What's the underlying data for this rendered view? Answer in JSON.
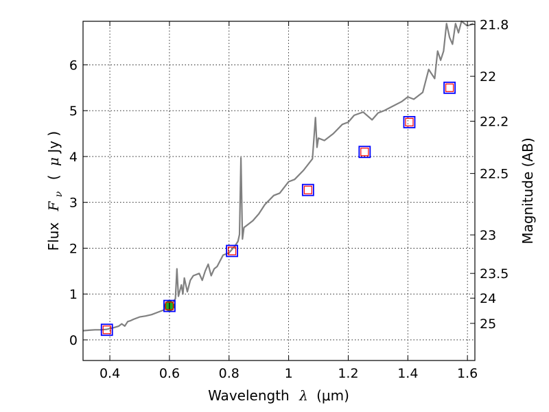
{
  "chart_data": {
    "type": "line",
    "title": "",
    "xlabel_text": "Wavelength",
    "xlabel_symbol": "λ",
    "xlabel_unit": "(μm)",
    "ylabel_text": "Flux",
    "ylabel_symbol": "F",
    "ylabel_sub": "ν",
    "ylabel_unit_open": "(",
    "ylabel_unit_mu": "μ",
    "ylabel_unit_rest": "Jy )",
    "ylabel_right": "Magnitude (AB)",
    "xlim": [
      0.31,
      1.625
    ],
    "ylim": [
      -0.45,
      6.95
    ],
    "grid": true,
    "x_ticks": [
      0.4,
      0.6,
      0.8,
      1.0,
      1.2,
      1.4,
      1.6
    ],
    "x_tick_labels": [
      "0.4",
      "0.6",
      "0.8",
      "1",
      "1.2",
      "1.4",
      "1.6"
    ],
    "y_ticks": [
      0,
      1,
      2,
      3,
      4,
      5,
      6
    ],
    "y_tick_labels": [
      "0",
      "1",
      "2",
      "3",
      "4",
      "5",
      "6"
    ],
    "right_ticks": [
      {
        "label": "21.8",
        "flux": 6.88
      },
      {
        "label": "22",
        "flux": 5.75
      },
      {
        "label": "22.2",
        "flux": 4.77
      },
      {
        "label": "22.5",
        "flux": 3.63
      },
      {
        "label": "23",
        "flux": 2.29
      },
      {
        "label": "23.5",
        "flux": 1.45
      },
      {
        "label": "24",
        "flux": 0.91
      },
      {
        "label": "25",
        "flux": 0.36
      }
    ],
    "series": [
      {
        "name": "spectrum",
        "color": "#808080",
        "x": [
          0.31,
          0.33,
          0.35,
          0.37,
          0.39,
          0.41,
          0.43,
          0.44,
          0.45,
          0.46,
          0.47,
          0.48,
          0.5,
          0.52,
          0.54,
          0.56,
          0.58,
          0.6,
          0.61,
          0.62,
          0.625,
          0.63,
          0.64,
          0.645,
          0.65,
          0.655,
          0.66,
          0.67,
          0.68,
          0.7,
          0.71,
          0.72,
          0.73,
          0.74,
          0.75,
          0.76,
          0.78,
          0.8,
          0.82,
          0.83,
          0.835,
          0.84,
          0.845,
          0.85,
          0.86,
          0.88,
          0.9,
          0.92,
          0.95,
          0.97,
          1.0,
          1.02,
          1.05,
          1.08,
          1.09,
          1.095,
          1.1,
          1.12,
          1.15,
          1.18,
          1.2,
          1.22,
          1.25,
          1.28,
          1.3,
          1.32,
          1.35,
          1.38,
          1.4,
          1.42,
          1.45,
          1.47,
          1.49,
          1.5,
          1.51,
          1.52,
          1.53,
          1.54,
          1.55,
          1.56,
          1.57,
          1.58,
          1.6,
          1.62
        ],
        "y": [
          0.2,
          0.21,
          0.22,
          0.22,
          0.23,
          0.26,
          0.3,
          0.35,
          0.3,
          0.4,
          0.42,
          0.45,
          0.5,
          0.52,
          0.55,
          0.6,
          0.65,
          0.75,
          0.8,
          0.9,
          1.55,
          0.95,
          1.2,
          1.0,
          1.35,
          1.2,
          1.05,
          1.3,
          1.4,
          1.45,
          1.3,
          1.5,
          1.65,
          1.4,
          1.55,
          1.6,
          1.85,
          1.9,
          2.05,
          2.15,
          2.3,
          3.97,
          2.2,
          2.45,
          2.5,
          2.6,
          2.75,
          2.95,
          3.15,
          3.2,
          3.45,
          3.5,
          3.7,
          3.95,
          4.85,
          4.2,
          4.4,
          4.35,
          4.5,
          4.7,
          4.75,
          4.9,
          4.97,
          4.8,
          4.95,
          5.0,
          5.1,
          5.2,
          5.3,
          5.25,
          5.4,
          5.9,
          5.7,
          6.3,
          6.1,
          6.3,
          6.9,
          6.6,
          6.45,
          6.9,
          6.7,
          6.95,
          6.85,
          6.9
        ]
      }
    ],
    "photometry": [
      {
        "x": 0.39,
        "y": 0.22
      },
      {
        "x": 0.6,
        "y": 0.74
      },
      {
        "x": 0.81,
        "y": 1.94
      },
      {
        "x": 1.065,
        "y": 3.27
      },
      {
        "x": 1.255,
        "y": 4.1
      },
      {
        "x": 1.405,
        "y": 4.75
      },
      {
        "x": 1.54,
        "y": 5.5
      }
    ],
    "highlight_point": {
      "x": 0.6,
      "y": 0.74,
      "color": "#22aa22"
    },
    "model_marker_color": "#ff0000",
    "observed_marker_color": "#0000ff"
  }
}
